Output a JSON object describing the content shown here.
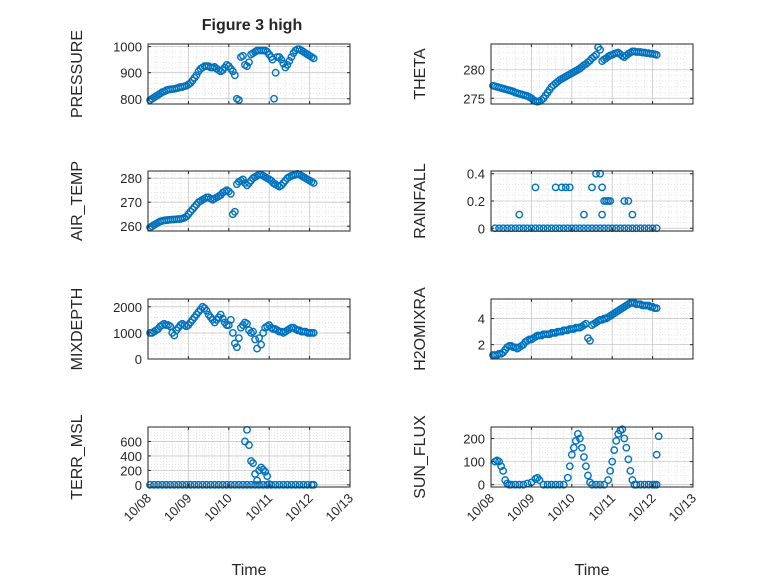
{
  "figure": {
    "title": "Figure 3 high",
    "marker_color": "#0072BD",
    "x_time_label": "Time",
    "x_ticks": [
      "10/08",
      "10/09",
      "10/10",
      "10/11",
      "10/12",
      "10/13"
    ]
  },
  "chart_data": [
    {
      "type": "scatter",
      "ylabel": "PRESSURE",
      "xlim": [
        0,
        5
      ],
      "ylim": [
        780,
        1010
      ],
      "yticks": [
        800,
        900,
        1000
      ],
      "grid": true,
      "x": [
        0.05,
        0.1,
        0.15,
        0.2,
        0.25,
        0.3,
        0.35,
        0.4,
        0.45,
        0.5,
        0.55,
        0.6,
        0.65,
        0.7,
        0.75,
        0.8,
        0.85,
        0.9,
        0.95,
        1.0,
        1.05,
        1.1,
        1.15,
        1.2,
        1.25,
        1.3,
        1.35,
        1.4,
        1.45,
        1.5,
        1.55,
        1.6,
        1.65,
        1.7,
        1.75,
        1.8,
        1.85,
        1.9,
        1.95,
        2.0,
        2.05,
        2.1,
        2.15,
        2.2,
        2.25,
        2.3,
        2.35,
        2.4,
        2.45,
        2.5,
        2.55,
        2.6,
        2.65,
        2.7,
        2.75,
        2.8,
        2.85,
        2.9,
        2.95,
        3.0,
        3.05,
        3.08,
        3.12,
        3.16,
        3.2,
        3.25,
        3.3,
        3.35,
        3.4,
        3.45,
        3.5,
        3.55,
        3.6,
        3.65,
        3.7,
        3.75,
        3.8,
        3.85,
        3.9,
        3.95,
        4.0,
        4.05,
        4.1
      ],
      "y": [
        795,
        800,
        805,
        810,
        815,
        820,
        825,
        828,
        832,
        835,
        836,
        837,
        838,
        840,
        842,
        845,
        845,
        848,
        850,
        855,
        860,
        870,
        880,
        890,
        905,
        915,
        920,
        925,
        925,
        925,
        920,
        920,
        922,
        915,
        910,
        905,
        910,
        920,
        930,
        925,
        915,
        905,
        890,
        800,
        795,
        960,
        965,
        930,
        925,
        940,
        970,
        975,
        980,
        985,
        985,
        985,
        985,
        985,
        980,
        970,
        960,
        950,
        800,
        900,
        960,
        960,
        950,
        935,
        920,
        930,
        945,
        960,
        975,
        985,
        990,
        990,
        985,
        980,
        975,
        970,
        965,
        960,
        955
      ]
    },
    {
      "type": "scatter",
      "ylabel": "THETA",
      "xlim": [
        0,
        5
      ],
      "ylim": [
        274,
        284.5
      ],
      "yticks": [
        275,
        280
      ],
      "grid": true,
      "x": [
        0.05,
        0.1,
        0.15,
        0.2,
        0.25,
        0.3,
        0.35,
        0.4,
        0.45,
        0.5,
        0.55,
        0.6,
        0.65,
        0.7,
        0.75,
        0.8,
        0.85,
        0.9,
        0.95,
        1.0,
        1.05,
        1.1,
        1.15,
        1.2,
        1.25,
        1.3,
        1.35,
        1.4,
        1.45,
        1.5,
        1.55,
        1.6,
        1.65,
        1.7,
        1.75,
        1.8,
        1.85,
        1.9,
        1.95,
        2.0,
        2.05,
        2.1,
        2.15,
        2.2,
        2.25,
        2.3,
        2.35,
        2.4,
        2.45,
        2.5,
        2.55,
        2.6,
        2.65,
        2.7,
        2.75,
        2.8,
        2.85,
        2.9,
        2.95,
        3.0,
        3.05,
        3.1,
        3.15,
        3.2,
        3.25,
        3.3,
        3.35,
        3.4,
        3.45,
        3.5,
        3.55,
        3.6,
        3.65,
        3.7,
        3.75,
        3.8,
        3.85,
        3.9,
        3.95,
        4.0,
        4.05,
        4.1
      ],
      "y": [
        277.2,
        277.1,
        277.0,
        276.9,
        276.8,
        276.7,
        276.6,
        276.5,
        276.4,
        276.3,
        276.2,
        276.0,
        275.9,
        275.8,
        275.7,
        275.6,
        275.5,
        275.4,
        275.2,
        275.0,
        274.7,
        274.5,
        274.4,
        274.5,
        274.7,
        275.0,
        275.5,
        276.0,
        276.5,
        277.0,
        277.3,
        277.6,
        277.9,
        278.2,
        278.4,
        278.6,
        278.8,
        279.0,
        279.2,
        279.4,
        279.6,
        279.8,
        280.0,
        280.2,
        280.5,
        280.8,
        281.0,
        281.3,
        281.6,
        282.0,
        282.3,
        282.6,
        283.9,
        283.5,
        281.5,
        281.8,
        282.0,
        282.3,
        282.5,
        282.6,
        282.8,
        282.9,
        283.0,
        282.7,
        282.4,
        282.2,
        282.5,
        282.8,
        283.0,
        283.2,
        283.2,
        283.1,
        283.1,
        283.1,
        283.0,
        283.0,
        282.9,
        282.9,
        282.8,
        282.8,
        282.7,
        282.6
      ]
    },
    {
      "type": "scatter",
      "ylabel": "AIR_TEMP",
      "xlim": [
        0,
        5
      ],
      "ylim": [
        258,
        283
      ],
      "yticks": [
        260,
        270,
        280
      ],
      "grid": true,
      "x": [
        0.05,
        0.1,
        0.15,
        0.2,
        0.25,
        0.3,
        0.35,
        0.4,
        0.45,
        0.5,
        0.55,
        0.6,
        0.65,
        0.7,
        0.75,
        0.8,
        0.85,
        0.9,
        0.95,
        1.0,
        1.05,
        1.1,
        1.15,
        1.2,
        1.25,
        1.3,
        1.35,
        1.4,
        1.45,
        1.5,
        1.55,
        1.6,
        1.65,
        1.7,
        1.75,
        1.8,
        1.85,
        1.9,
        1.95,
        2.0,
        2.05,
        2.1,
        2.15,
        2.2,
        2.25,
        2.3,
        2.35,
        2.4,
        2.45,
        2.5,
        2.55,
        2.6,
        2.65,
        2.7,
        2.75,
        2.8,
        2.85,
        2.9,
        2.95,
        3.0,
        3.05,
        3.1,
        3.15,
        3.2,
        3.25,
        3.3,
        3.35,
        3.4,
        3.45,
        3.5,
        3.55,
        3.6,
        3.65,
        3.7,
        3.75,
        3.8,
        3.85,
        3.9,
        3.95,
        4.0,
        4.05,
        4.1
      ],
      "y": [
        259.5,
        260.0,
        260.5,
        261.0,
        261.5,
        262.0,
        262.2,
        262.4,
        262.5,
        262.6,
        262.7,
        262.8,
        262.8,
        262.9,
        263.0,
        263.0,
        263.2,
        263.5,
        264.0,
        265.0,
        266.0,
        267.0,
        268.0,
        269.0,
        270.0,
        270.5,
        271.0,
        271.5,
        272.0,
        272.0,
        271.5,
        271.0,
        271.5,
        272.0,
        272.5,
        273.0,
        274.0,
        274.5,
        275.0,
        274.5,
        273.5,
        265.0,
        266.0,
        277.5,
        278.5,
        279.0,
        279.5,
        278.0,
        277.0,
        278.0,
        279.0,
        280.0,
        280.5,
        281.0,
        281.5,
        281.5,
        281.0,
        280.5,
        280.0,
        279.5,
        279.0,
        278.0,
        277.5,
        277.0,
        276.5,
        277.0,
        278.0,
        279.0,
        280.0,
        280.5,
        281.0,
        281.2,
        281.5,
        281.8,
        281.5,
        281.0,
        280.5,
        280.0,
        279.5,
        279.0,
        278.5,
        278.0
      ]
    },
    {
      "type": "scatter",
      "ylabel": "RAINFALL",
      "xlim": [
        0,
        5
      ],
      "ylim": [
        -0.02,
        0.42
      ],
      "yticks": [
        0,
        0.2,
        0.4
      ],
      "grid": true,
      "x": [
        0.1,
        0.2,
        0.3,
        0.4,
        0.5,
        0.6,
        0.7,
        0.8,
        0.9,
        1.0,
        1.1,
        1.2,
        1.3,
        1.4,
        1.5,
        1.6,
        1.7,
        1.8,
        1.9,
        2.0,
        2.1,
        2.2,
        2.3,
        2.4,
        2.5,
        2.6,
        2.7,
        2.8,
        2.9,
        3.0,
        3.1,
        3.2,
        3.3,
        3.4,
        3.5,
        3.6,
        3.7,
        3.8,
        3.9,
        4.0,
        4.1,
        0.7,
        1.1,
        1.6,
        1.75,
        1.85,
        1.95,
        2.5,
        2.6,
        2.7,
        2.75,
        2.8,
        2.85,
        2.9,
        2.95,
        3.3,
        3.4,
        3.5,
        2.3,
        2.75
      ],
      "y": [
        0,
        0,
        0,
        0,
        0,
        0,
        0,
        0,
        0,
        0,
        0,
        0,
        0,
        0,
        0,
        0,
        0,
        0,
        0,
        0,
        0,
        0,
        0,
        0,
        0,
        0,
        0,
        0,
        0,
        0,
        0,
        0,
        0,
        0,
        0,
        0,
        0,
        0,
        0,
        0,
        0,
        0.1,
        0.3,
        0.3,
        0.3,
        0.3,
        0.3,
        0.3,
        0.4,
        0.4,
        0.3,
        0.2,
        0.2,
        0.2,
        0.2,
        0.2,
        0.2,
        0.1,
        0.1,
        0.1
      ]
    },
    {
      "type": "scatter",
      "ylabel": "MIXDEPTH",
      "xlim": [
        0,
        5
      ],
      "ylim": [
        0,
        2300
      ],
      "yticks": [
        0,
        1000,
        2000
      ],
      "grid": true,
      "x": [
        0.05,
        0.1,
        0.15,
        0.2,
        0.25,
        0.3,
        0.35,
        0.4,
        0.45,
        0.5,
        0.55,
        0.6,
        0.65,
        0.7,
        0.75,
        0.8,
        0.85,
        0.9,
        0.95,
        1.0,
        1.05,
        1.1,
        1.15,
        1.2,
        1.25,
        1.3,
        1.35,
        1.4,
        1.45,
        1.5,
        1.55,
        1.6,
        1.65,
        1.7,
        1.75,
        1.8,
        1.85,
        1.9,
        1.95,
        2.0,
        2.05,
        2.1,
        2.15,
        2.2,
        2.25,
        2.3,
        2.35,
        2.4,
        2.45,
        2.5,
        2.55,
        2.6,
        2.65,
        2.7,
        2.75,
        2.8,
        2.85,
        2.9,
        2.95,
        3.0,
        3.05,
        3.1,
        3.15,
        3.2,
        3.25,
        3.3,
        3.35,
        3.4,
        3.45,
        3.5,
        3.55,
        3.6,
        3.65,
        3.7,
        3.75,
        3.8,
        3.85,
        3.9,
        3.95,
        4.0,
        4.05,
        4.1
      ],
      "y": [
        1000,
        1000,
        1050,
        1100,
        1150,
        1250,
        1300,
        1350,
        1300,
        1300,
        1250,
        1000,
        900,
        1100,
        1200,
        1300,
        1350,
        1300,
        1250,
        1300,
        1400,
        1500,
        1600,
        1700,
        1800,
        1900,
        2000,
        1950,
        1850,
        1700,
        1600,
        1500,
        1400,
        1500,
        1600,
        1700,
        1550,
        1400,
        1300,
        1300,
        1500,
        1000,
        600,
        450,
        800,
        1200,
        1300,
        1400,
        1350,
        1100,
        1000,
        1050,
        750,
        400,
        800,
        550,
        1000,
        1200,
        1250,
        1300,
        1200,
        1150,
        1150,
        1100,
        1050,
        1050,
        1000,
        1050,
        1100,
        1150,
        1200,
        1200,
        1150,
        1100,
        1100,
        1050,
        1050,
        1050,
        1000,
        1000,
        1000,
        1000
      ]
    },
    {
      "type": "scatter",
      "ylabel": "H2OMIXRA",
      "xlim": [
        0,
        5
      ],
      "ylim": [
        0.9,
        5.5
      ],
      "yticks": [
        2,
        4
      ],
      "grid": true,
      "x": [
        0.05,
        0.1,
        0.15,
        0.2,
        0.25,
        0.3,
        0.35,
        0.4,
        0.45,
        0.5,
        0.55,
        0.6,
        0.65,
        0.7,
        0.75,
        0.8,
        0.85,
        0.9,
        0.95,
        1.0,
        1.05,
        1.1,
        1.15,
        1.2,
        1.25,
        1.3,
        1.35,
        1.4,
        1.45,
        1.5,
        1.55,
        1.6,
        1.65,
        1.7,
        1.75,
        1.8,
        1.85,
        1.9,
        1.95,
        2.0,
        2.05,
        2.1,
        2.15,
        2.2,
        2.25,
        2.3,
        2.35,
        2.4,
        2.45,
        2.5,
        2.55,
        2.6,
        2.65,
        2.7,
        2.75,
        2.8,
        2.85,
        2.9,
        2.95,
        3.0,
        3.05,
        3.1,
        3.15,
        3.2,
        3.25,
        3.3,
        3.35,
        3.4,
        3.45,
        3.5,
        3.55,
        3.6,
        3.65,
        3.7,
        3.75,
        3.8,
        3.85,
        3.9,
        3.95,
        4.0,
        4.05,
        4.1
      ],
      "y": [
        1.2,
        1.2,
        1.2,
        1.3,
        1.3,
        1.4,
        1.6,
        1.8,
        1.9,
        1.9,
        1.8,
        1.8,
        1.7,
        1.8,
        1.9,
        2.0,
        2.2,
        2.3,
        2.4,
        2.4,
        2.5,
        2.6,
        2.7,
        2.7,
        2.7,
        2.8,
        2.8,
        2.8,
        2.8,
        2.9,
        2.9,
        2.9,
        3.0,
        3.0,
        3.0,
        3.1,
        3.1,
        3.1,
        3.2,
        3.2,
        3.2,
        3.3,
        3.3,
        3.3,
        3.4,
        3.5,
        3.6,
        2.5,
        2.3,
        3.5,
        3.6,
        3.7,
        3.8,
        3.9,
        3.9,
        4.0,
        4.0,
        4.1,
        4.2,
        4.3,
        4.4,
        4.5,
        4.6,
        4.7,
        4.8,
        4.9,
        5.0,
        5.1,
        5.2,
        5.2,
        5.2,
        5.1,
        5.1,
        5.1,
        5.0,
        5.0,
        5.0,
        5.0,
        4.9,
        4.9,
        4.8,
        4.8
      ]
    },
    {
      "type": "scatter",
      "ylabel": "TERR_MSL",
      "xlim": [
        0,
        5
      ],
      "ylim": [
        -30,
        800
      ],
      "yticks": [
        0,
        200,
        400,
        600
      ],
      "grid": true,
      "x": [
        0.05,
        0.15,
        0.25,
        0.35,
        0.45,
        0.55,
        0.65,
        0.75,
        0.85,
        0.95,
        1.05,
        1.15,
        1.25,
        1.35,
        1.45,
        1.55,
        1.65,
        1.75,
        1.85,
        1.95,
        2.05,
        2.15,
        2.25,
        2.35,
        2.45,
        2.55,
        2.65,
        2.75,
        2.85,
        2.95,
        3.05,
        3.15,
        3.25,
        3.35,
        3.45,
        3.55,
        3.65,
        3.75,
        3.85,
        3.95,
        4.05,
        4.1,
        2.4,
        2.45,
        2.5,
        2.55,
        2.6,
        2.65,
        2.7,
        2.75,
        2.8,
        2.85,
        2.9,
        2.95,
        3.0
      ],
      "y": [
        0,
        0,
        0,
        0,
        0,
        0,
        0,
        0,
        0,
        0,
        0,
        0,
        0,
        0,
        0,
        0,
        0,
        0,
        0,
        0,
        0,
        0,
        0,
        0,
        0,
        0,
        0,
        0,
        0,
        0,
        0,
        0,
        0,
        0,
        0,
        0,
        0,
        0,
        0,
        0,
        0,
        0,
        600,
        760,
        550,
        330,
        300,
        150,
        60,
        200,
        240,
        210,
        180,
        120,
        10
      ]
    },
    {
      "type": "scatter",
      "ylabel": "SUN_FLUX",
      "xlim": [
        0,
        5
      ],
      "ylim": [
        -10,
        250
      ],
      "yticks": [
        0,
        100,
        200
      ],
      "grid": true,
      "x": [
        0.1,
        0.15,
        0.2,
        0.25,
        0.3,
        0.35,
        0.4,
        0.45,
        0.5,
        0.6,
        0.7,
        0.8,
        0.9,
        1.0,
        1.1,
        1.15,
        1.2,
        1.3,
        1.4,
        1.5,
        1.6,
        1.7,
        1.8,
        1.9,
        1.95,
        2.0,
        2.05,
        2.1,
        2.15,
        2.2,
        2.25,
        2.3,
        2.35,
        2.4,
        2.45,
        2.5,
        2.6,
        2.7,
        2.8,
        2.9,
        2.95,
        3.0,
        3.05,
        3.1,
        3.15,
        3.2,
        3.25,
        3.3,
        3.35,
        3.4,
        3.45,
        3.5,
        3.55,
        3.6,
        3.7,
        3.8,
        3.9,
        4.0,
        4.05,
        4.1,
        4.1,
        4.15
      ],
      "y": [
        100,
        105,
        100,
        80,
        60,
        20,
        5,
        0,
        0,
        0,
        0,
        0,
        5,
        10,
        25,
        30,
        20,
        0,
        0,
        0,
        0,
        0,
        0,
        30,
        80,
        130,
        160,
        190,
        220,
        200,
        160,
        120,
        80,
        40,
        10,
        0,
        0,
        0,
        0,
        20,
        60,
        100,
        150,
        190,
        220,
        235,
        240,
        200,
        160,
        110,
        60,
        20,
        0,
        0,
        0,
        0,
        0,
        0,
        0,
        0,
        130,
        210
      ]
    }
  ]
}
